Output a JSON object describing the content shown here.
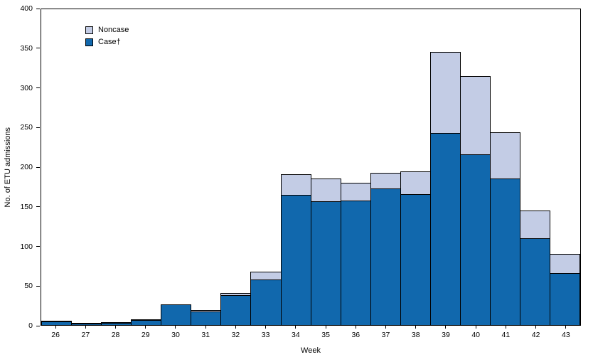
{
  "chart_data": {
    "type": "bar",
    "stacked": true,
    "title": "",
    "xlabel": "Week",
    "ylabel": "No. of ETU admissions",
    "ylim": [
      0,
      400
    ],
    "yticks": [
      0,
      50,
      100,
      150,
      200,
      250,
      300,
      350,
      400
    ],
    "grid": false,
    "legend_position": "top-left-inside",
    "categories": [
      "26",
      "27",
      "28",
      "29",
      "30",
      "31",
      "32",
      "33",
      "34",
      "35",
      "36",
      "37",
      "38",
      "39",
      "40",
      "41",
      "42",
      "43"
    ],
    "series": [
      {
        "name": "Case†",
        "color": "#1168ad",
        "values": [
          4,
          1,
          2,
          5,
          26,
          16,
          37,
          57,
          164,
          156,
          157,
          172,
          165,
          242,
          215,
          185,
          109,
          65
        ]
      },
      {
        "name": "Noncase",
        "color": "#c3cce5",
        "values": [
          1,
          2,
          2,
          1,
          0,
          3,
          4,
          11,
          27,
          30,
          23,
          21,
          30,
          104,
          100,
          59,
          36,
          25
        ]
      }
    ],
    "legend": [
      {
        "label": "Noncase",
        "color": "#c3cce5"
      },
      {
        "label": "Case†",
        "color": "#1168ad"
      }
    ],
    "bar_outline_color": "#000000"
  }
}
